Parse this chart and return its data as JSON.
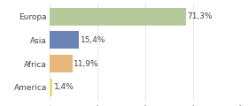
{
  "categories": [
    "Europa",
    "Asia",
    "Africa",
    "America"
  ],
  "values": [
    71.3,
    15.4,
    11.9,
    1.4
  ],
  "labels": [
    "71,3%",
    "15,4%",
    "11,9%",
    "1,4%"
  ],
  "bar_colors": [
    "#b5c99a",
    "#6b84b8",
    "#e8b87a",
    "#e8da7a"
  ],
  "background_color": "#ffffff",
  "xlim": [
    0,
    100
  ],
  "bar_height": 0.75,
  "label_fontsize": 6.5,
  "tick_fontsize": 6.5,
  "grid_color": "#dddddd",
  "grid_positions": [
    0,
    25,
    50,
    75,
    100
  ]
}
